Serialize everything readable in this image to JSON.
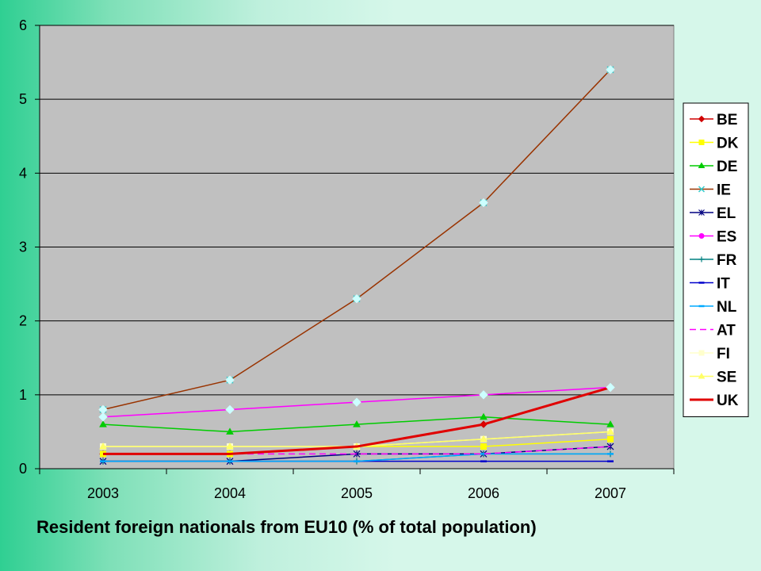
{
  "caption": "Resident foreign nationals from EU10 (% of total population)",
  "chart_data": {
    "type": "line",
    "x": [
      "2003",
      "2004",
      "2005",
      "2006",
      "2007"
    ],
    "ylim": [
      0,
      6
    ],
    "yticks": [
      0,
      1,
      2,
      3,
      4,
      5,
      6
    ],
    "grid": "horizontal",
    "legend_position": "right",
    "plot_background": "#c0c0c0",
    "series": [
      {
        "name": "BE",
        "values": [
          0.2,
          0.2,
          0.3,
          0.6,
          1.1
        ],
        "color": "#d00000",
        "marker": "diamond",
        "marker_color": "#d00000"
      },
      {
        "name": "DK",
        "values": [
          0.2,
          0.2,
          0.3,
          0.3,
          0.4
        ],
        "color": "#ffff00",
        "marker": "square",
        "marker_color": "#ffff00"
      },
      {
        "name": "DE",
        "values": [
          0.6,
          0.5,
          0.6,
          0.7,
          0.6
        ],
        "color": "#00cc00",
        "marker": "triangle",
        "marker_color": "#00cc00"
      },
      {
        "name": "IE",
        "values": [
          0.8,
          1.2,
          2.3,
          3.6,
          5.4
        ],
        "color": "#993300",
        "marker": "x",
        "marker_color": "#33cccc"
      },
      {
        "name": "EL",
        "values": [
          0.1,
          0.1,
          0.2,
          0.2,
          0.3
        ],
        "color": "#000080",
        "marker": "asterisk",
        "marker_color": "#000080"
      },
      {
        "name": "ES",
        "values": [
          0.7,
          0.8,
          0.9,
          1.0,
          1.1
        ],
        "color": "#ff00ff",
        "marker": "circle",
        "marker_color": "#ff00ff"
      },
      {
        "name": "FR",
        "values": [
          0.1,
          0.1,
          0.1,
          0.2,
          0.2
        ],
        "color": "#008080",
        "marker": "plus",
        "marker_color": "#008080"
      },
      {
        "name": "IT",
        "values": [
          0.1,
          0.1,
          0.1,
          0.1,
          0.1
        ],
        "color": "#0000cc",
        "marker": "dash",
        "marker_color": "#0000cc"
      },
      {
        "name": "NL",
        "values": [
          0.1,
          0.1,
          0.1,
          0.2,
          0.2
        ],
        "color": "#00aaff",
        "marker": "dash",
        "marker_color": "#00aaff"
      },
      {
        "name": "AT",
        "values": [
          0.2,
          0.2,
          0.2,
          0.2,
          0.3
        ],
        "color": "#ff00ff",
        "marker": "none",
        "dashed": true
      },
      {
        "name": "FI",
        "values": [
          0.3,
          0.3,
          0.3,
          0.4,
          0.5
        ],
        "color": "#ffffcc",
        "marker": "square",
        "marker_color": "#ffffcc"
      },
      {
        "name": "SE",
        "values": [
          0.3,
          0.3,
          0.3,
          0.4,
          0.5
        ],
        "color": "#ffff66",
        "marker": "triangle",
        "marker_color": "#ffff66"
      },
      {
        "name": "UK",
        "values": [
          0.2,
          0.2,
          0.3,
          0.6,
          1.1
        ],
        "color": "#e00000",
        "marker": "none",
        "width": 3
      }
    ],
    "overlay_markers": [
      {
        "series": "IE",
        "marker": "diamond",
        "color": "#ccffff"
      },
      {
        "series": "ES",
        "marker": "diamond",
        "color": "#ccffff"
      }
    ]
  }
}
